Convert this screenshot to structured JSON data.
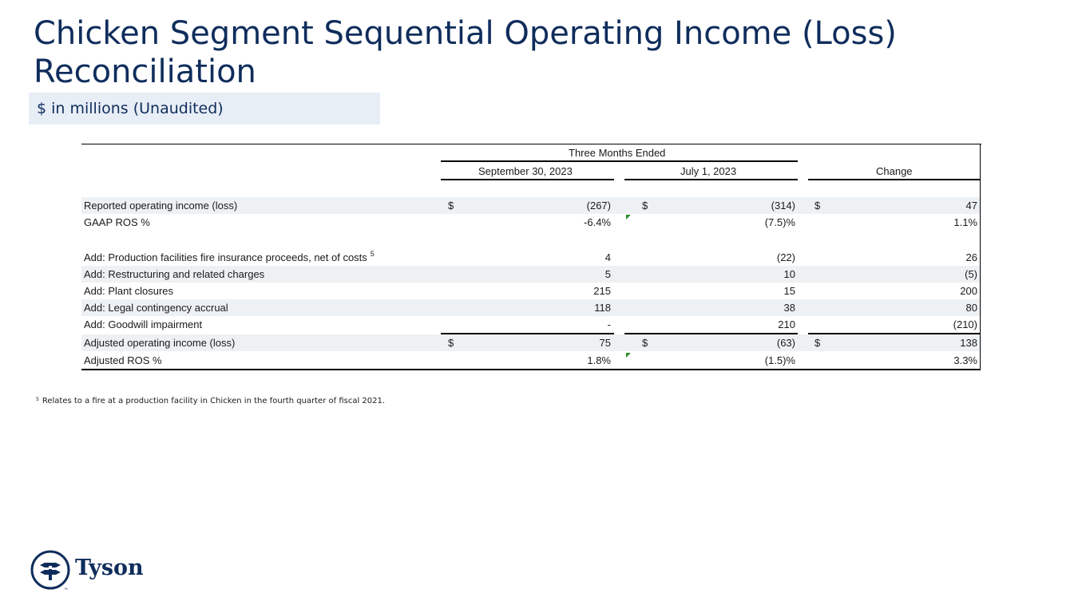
{
  "title": "Chicken Segment Sequential Operating Income (Loss) Reconciliation",
  "subtitle": "$ in millions (Unaudited)",
  "table": {
    "group_header": "Three Months Ended",
    "columns": [
      "September 30, 2023",
      "July 1, 2023",
      "Change"
    ],
    "rows": [
      {
        "label": "Reported operating income (loss)",
        "cur1": "$",
        "v1": "(267)",
        "cur2": "$",
        "v2": "(314)",
        "cur3": "$",
        "v3": "47"
      },
      {
        "label": "GAAP ROS %",
        "v1": "-6.4%",
        "v2": "(7.5)%",
        "v3": "1.1%"
      },
      {
        "label": "Add: Production facilities fire insurance proceeds, net of costs",
        "sup": "5",
        "v1": "4",
        "v2": "(22)",
        "v3": "26"
      },
      {
        "label": "Add: Restructuring and related charges",
        "v1": "5",
        "v2": "10",
        "v3": "(5)"
      },
      {
        "label": "Add: Plant closures",
        "v1": "215",
        "v2": "15",
        "v3": "200"
      },
      {
        "label": "Add: Legal contingency accrual",
        "v1": "118",
        "v2": "38",
        "v3": "80"
      },
      {
        "label": "Add: Goodwill impairment",
        "v1": "-",
        "v2": "210",
        "v3": "(210)"
      },
      {
        "label": "Adjusted operating income (loss)",
        "cur1": "$",
        "v1": "75",
        "cur2": "$",
        "v2": "(63)",
        "cur3": "$",
        "v3": "138"
      },
      {
        "label": "Adjusted ROS %",
        "v1": "1.8%",
        "v2": "(1.5)%",
        "v3": "3.3%"
      }
    ]
  },
  "footnote": {
    "marker": "5",
    "text": "Relates to a fire at a production facility in Chicken in the fourth quarter of fiscal 2021."
  },
  "logo": {
    "text": "Tyson",
    "tm": "™"
  },
  "colors": {
    "brand_navy": "#0f2d5c",
    "shade": "#eef1f4",
    "flag_green": "#2e8b2e"
  }
}
